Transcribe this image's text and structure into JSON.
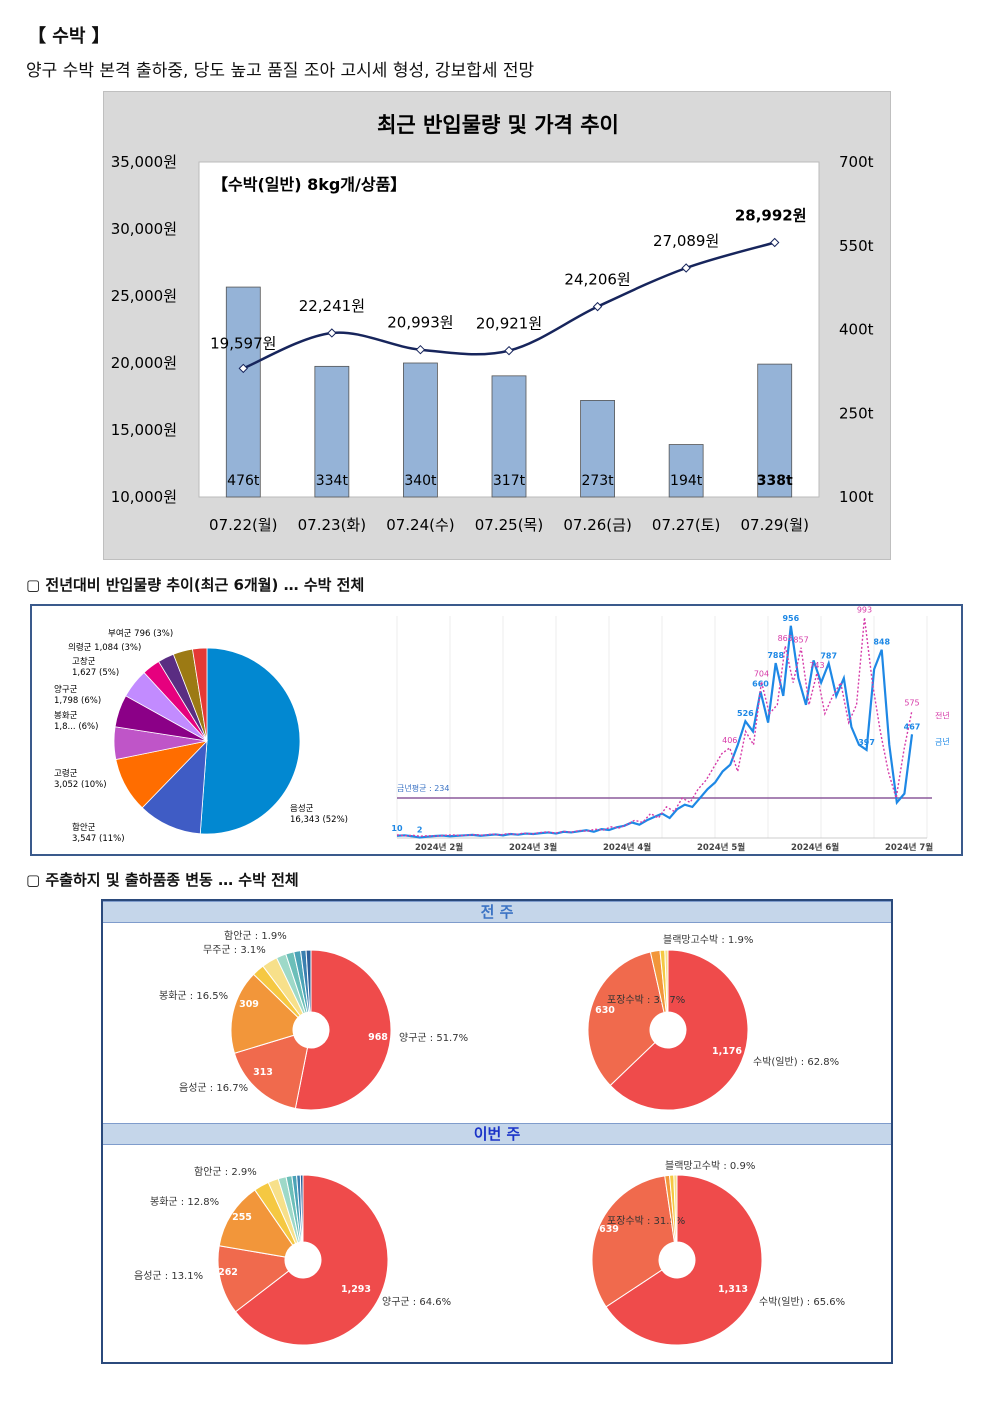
{
  "header": {
    "tag": "【 수박 】",
    "summary": "양구 수박 본격 출하중, 당도 높고 품질 조아 고시세 형성, 강보합세 전망"
  },
  "chart_data": [
    {
      "type": "bar",
      "title": "최근 반입물량 및 가격 추이",
      "subtitle": "【수박(일반) 8kg개/상품】",
      "categories": [
        "07.22(월)",
        "07.23(화)",
        "07.24(수)",
        "07.25(목)",
        "07.26(금)",
        "07.27(토)",
        "07.29(월)"
      ],
      "left_axis": {
        "ticks": [
          "35,000원",
          "30,000원",
          "25,000원",
          "20,000원",
          "15,000원",
          "10,000원"
        ],
        "range": [
          10000,
          35000
        ]
      },
      "right_axis": {
        "ticks": [
          "700t",
          "550t",
          "400t",
          "250t",
          "100t"
        ],
        "range": [
          100,
          700
        ]
      },
      "series": [
        {
          "name": "반입물량",
          "kind": "bar",
          "values": [
            476,
            334,
            340,
            317,
            273,
            194,
            338
          ],
          "labels": [
            "476t",
            "334t",
            "340t",
            "317t",
            "273t",
            "194t",
            "338t"
          ],
          "color": "#95b3d7"
        },
        {
          "name": "가격",
          "kind": "line",
          "values": [
            19597,
            22241,
            20993,
            20921,
            24206,
            27089,
            28992
          ],
          "labels": [
            "19,597원",
            "22,241원",
            "20,993원",
            "20,921원",
            "24,206원",
            "27,089원",
            "28,992원"
          ],
          "color": "#17255c"
        }
      ]
    },
    {
      "type": "pie",
      "slices": [
        {
          "label": "음성군",
          "sub": "16,343 (52%)",
          "value": 16343,
          "color": "#0288d1"
        },
        {
          "label": "함안군",
          "sub": "3,547 (11%)",
          "value": 3547,
          "color": "#3f5cc5"
        },
        {
          "label": "고령군",
          "sub": "3,052 (10%)",
          "value": 3052,
          "color": "#ff6d00"
        },
        {
          "label": "봉화군",
          "sub": "1,8... (6%)",
          "value": 1800,
          "color": "#bf55c8"
        },
        {
          "label": "양구군",
          "sub": "1,798 (6%)",
          "value": 1798,
          "color": "#8b0087"
        },
        {
          "label": "고창군",
          "sub": "1,627 (5%)",
          "value": 1627,
          "color": "#c28bff"
        },
        {
          "label": "",
          "sub": "",
          "value": 1000,
          "color": "#e6007e"
        },
        {
          "label": "",
          "sub": "",
          "value": 900,
          "color": "#5a2d82"
        },
        {
          "label": "의령군",
          "sub": "1,084 (3%)",
          "value": 1084,
          "color": "#9c7a14"
        },
        {
          "label": "부여군",
          "sub": "796 (3%)",
          "value": 796,
          "color": "#e53935"
        }
      ]
    },
    {
      "type": "line",
      "x_ticks": [
        "2024년 2월",
        "2024년 3월",
        "2024년 4월",
        "2024년 5월",
        "2024년 6월",
        "2024년 7월"
      ],
      "avg_label": "금년평균 : 234",
      "series": [
        {
          "name": "금년",
          "color": "#1e88e5",
          "values": [
            10,
            12,
            8,
            2,
            6,
            9,
            11,
            8,
            10,
            12,
            14,
            10,
            13,
            16,
            12,
            18,
            15,
            20,
            18,
            22,
            25,
            20,
            28,
            25,
            30,
            35,
            28,
            40,
            36,
            48,
            55,
            70,
            60,
            80,
            95,
            110,
            90,
            130,
            150,
            140,
            180,
            220,
            250,
            300,
            330,
            420,
            526,
            480,
            660,
            520,
            788,
            640,
            956,
            720,
            600,
            800,
            700,
            787,
            640,
            720,
            500,
            420,
            397,
            760,
            848,
            420,
            160,
            200,
            467
          ],
          "labels": [
            {
              "i": 0,
              "t": "10"
            },
            {
              "i": 3,
              "t": "2"
            },
            {
              "i": 46,
              "t": "526"
            },
            {
              "i": 48,
              "t": "660"
            },
            {
              "i": 50,
              "t": "788"
            },
            {
              "i": 52,
              "t": "956"
            },
            {
              "i": 57,
              "t": "787"
            },
            {
              "i": 62,
              "t": "397"
            },
            {
              "i": 64,
              "t": "848"
            },
            {
              "i": 68,
              "t": "467"
            }
          ]
        },
        {
          "name": "전년",
          "color": "#d63aa8",
          "values": [
            14,
            10,
            12,
            8,
            10,
            9,
            12,
            14,
            11,
            13,
            15,
            12,
            18,
            14,
            20,
            16,
            22,
            18,
            24,
            28,
            22,
            30,
            26,
            34,
            30,
            40,
            35,
            50,
            45,
            60,
            80,
            70,
            110,
            90,
            140,
            120,
            180,
            160,
            220,
            260,
            320,
            380,
            406,
            300,
            480,
            420,
            704,
            560,
            600,
            865,
            700,
            857,
            600,
            743,
            560,
            640,
            700,
            520,
            600,
            993,
            700,
            480,
            300,
            180,
            400,
            575
          ],
          "labels": [
            {
              "i": 42,
              "t": "406"
            },
            {
              "i": 46,
              "t": "704"
            },
            {
              "i": 49,
              "t": "865"
            },
            {
              "i": 51,
              "t": "857"
            },
            {
              "i": 53,
              "t": "743"
            },
            {
              "i": 59,
              "t": "993"
            },
            {
              "i": 65,
              "t": "575"
            }
          ]
        }
      ]
    },
    {
      "type": "pie",
      "group": "전 주",
      "slices": [
        {
          "label": "양구군 : 51.7%",
          "value": 968,
          "color": "#ef4b4b"
        },
        {
          "label": "음성군 : 16.7%",
          "value": 313,
          "color": "#f06a4d"
        },
        {
          "label": "봉화군 : 16.5%",
          "value": 309,
          "color": "#f2963a"
        },
        {
          "label": "",
          "value": 45,
          "color": "#f5c842"
        },
        {
          "label": "무주군 : 3.1%",
          "value": 58,
          "color": "#f7e08a"
        },
        {
          "label": "함안군 : 1.9%",
          "value": 36,
          "color": "#9ed9c8"
        },
        {
          "label": "",
          "value": 30,
          "color": "#6cbfb9"
        },
        {
          "label": "",
          "value": 25,
          "color": "#4ba3b7"
        },
        {
          "label": "",
          "value": 20,
          "color": "#3a7fb0"
        },
        {
          "label": "",
          "value": 18,
          "color": "#2d5f99"
        }
      ]
    },
    {
      "type": "pie",
      "group": "전 주",
      "slices": [
        {
          "label": "수박(일반) : 62.8%",
          "value": 1176,
          "color": "#ef4b4b"
        },
        {
          "label": "포장수박 : 33.7%",
          "value": 630,
          "color": "#f06a4d"
        },
        {
          "label": "블랙망고수박 : 1.9%",
          "value": 36,
          "color": "#f2963a"
        },
        {
          "label": "",
          "value": 18,
          "color": "#f5c842"
        },
        {
          "label": "",
          "value": 12,
          "color": "#f7e08a"
        }
      ]
    },
    {
      "type": "pie",
      "group": "이번 주",
      "slices": [
        {
          "label": "양구군 : 64.6%",
          "value": 1293,
          "color": "#ef4b4b"
        },
        {
          "label": "음성군 : 13.1%",
          "value": 262,
          "color": "#f06a4d"
        },
        {
          "label": "봉화군 : 12.8%",
          "value": 255,
          "color": "#f2963a"
        },
        {
          "label": "함안군 : 2.9%",
          "value": 58,
          "color": "#f5c842"
        },
        {
          "label": "",
          "value": 40,
          "color": "#f7e08a"
        },
        {
          "label": "",
          "value": 30,
          "color": "#9ed9c8"
        },
        {
          "label": "",
          "value": 22,
          "color": "#6cbfb9"
        },
        {
          "label": "",
          "value": 18,
          "color": "#4ba3b7"
        },
        {
          "label": "",
          "value": 14,
          "color": "#3a7fb0"
        },
        {
          "label": "",
          "value": 10,
          "color": "#2d5f99"
        }
      ]
    },
    {
      "type": "pie",
      "group": "이번 주",
      "slices": [
        {
          "label": "수박(일반) : 65.6%",
          "value": 1313,
          "color": "#ef4b4b"
        },
        {
          "label": "포장수박 : 31.9%",
          "value": 639,
          "color": "#f06a4d"
        },
        {
          "label": "블랙망고수박 : 0.9%",
          "value": 18,
          "color": "#f2963a"
        },
        {
          "label": "",
          "value": 16,
          "color": "#f5c842"
        },
        {
          "label": "",
          "value": 12,
          "color": "#f7e08a"
        }
      ]
    }
  ],
  "sections": {
    "s1": "▢ 전년대비 반입물량 추이(최근 6개월) … 수박 전체",
    "s2": "▢ 주출하지 및 출하품종 변동 … 수박 전체",
    "band_prev": "전 주",
    "band_this": "이번 주"
  }
}
